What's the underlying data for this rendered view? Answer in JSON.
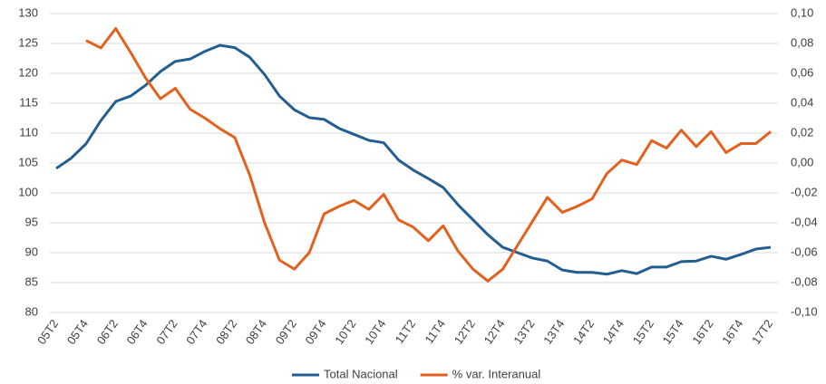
{
  "chart_data": {
    "type": "line",
    "categories": [
      "05T2",
      null,
      "05T4",
      null,
      "06T2",
      null,
      "06T4",
      null,
      "07T2",
      null,
      "07T4",
      null,
      "08T2",
      null,
      "08T4",
      null,
      "09T2",
      null,
      "09T4",
      null,
      "10T2",
      null,
      "10T4",
      null,
      "11T2",
      null,
      "11T4",
      null,
      "12T2",
      null,
      "12T4",
      null,
      "13T2",
      null,
      "13T4",
      null,
      "14T2",
      null,
      "14T4",
      null,
      "15T2",
      null,
      "15T4",
      null,
      "16T2",
      null,
      "16T4",
      null,
      "17T2"
    ],
    "series": [
      {
        "name": "Total Nacional",
        "color": "#245d8f",
        "values": [
          104.1,
          105.8,
          108.2,
          112.1,
          115.3,
          116.2,
          118,
          120.3,
          122,
          122.4,
          123.7,
          124.7,
          124.3,
          122.7,
          119.8,
          116.2,
          113.9,
          112.6,
          112.3,
          110.8,
          109.8,
          108.8,
          108.4,
          105.5,
          103.8,
          102.4,
          100.9,
          98,
          95.5,
          93,
          90.9,
          90,
          89.1,
          88.6,
          87.1,
          86.7,
          86.7,
          86.4,
          87,
          86.5,
          87.6,
          87.6,
          88.5,
          88.6,
          89.4,
          88.9,
          89.7,
          90.6,
          90.9
        ]
      },
      {
        "name": "% var. Interanual",
        "color": "#e2611e",
        "axis": "y2",
        "values": [
          null,
          null,
          0.082,
          0.077,
          0.09,
          0.074,
          0.057,
          0.043,
          0.05,
          0.036,
          0.03,
          0.023,
          0.017,
          -0.008,
          -0.04,
          -0.065,
          -0.071,
          -0.06,
          -0.034,
          -0.029,
          -0.025,
          -0.031,
          -0.021,
          -0.038,
          -0.043,
          -0.052,
          -0.042,
          -0.059,
          -0.071,
          -0.079,
          -0.071,
          -0.055,
          -0.039,
          -0.023,
          -0.033,
          -0.029,
          -0.024,
          -0.007,
          0.002,
          -0.001,
          0.015,
          0.01,
          0.022,
          0.011,
          0.021,
          0.007,
          0.013,
          0.013,
          0.021
        ]
      }
    ],
    "ylim": [
      80,
      130
    ],
    "yticks": [
      80,
      85,
      90,
      95,
      100,
      105,
      110,
      115,
      120,
      125,
      130
    ],
    "y2lim": [
      -0.1,
      0.1
    ],
    "y2ticks": [
      {
        "value": -0.1,
        "label": "-0,10"
      },
      {
        "value": -0.08,
        "label": "-0,08"
      },
      {
        "value": -0.06,
        "label": "-0,06"
      },
      {
        "value": -0.04,
        "label": "-0,04"
      },
      {
        "value": -0.02,
        "label": "-0,02"
      },
      {
        "value": 0,
        "label": "0,00"
      },
      {
        "value": 0.02,
        "label": "0,02"
      },
      {
        "value": 0.04,
        "label": "0,04"
      },
      {
        "value": 0.06,
        "label": "0,06"
      },
      {
        "value": 0.08,
        "label": "0,08"
      },
      {
        "value": 0.1,
        "label": "0,10"
      }
    ],
    "grid": true,
    "legend": "bottom"
  }
}
